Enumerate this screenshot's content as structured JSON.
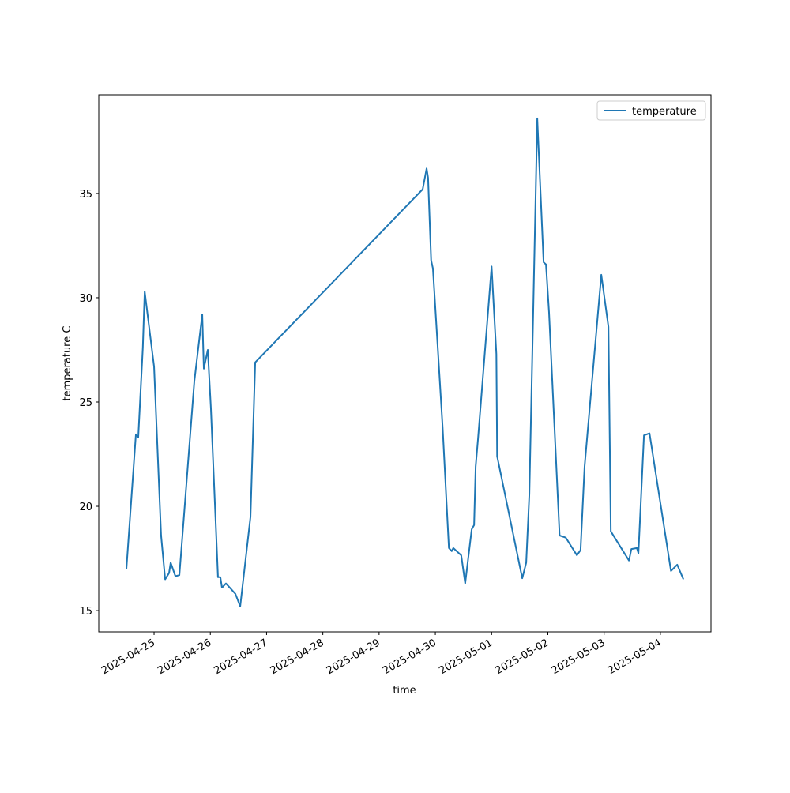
{
  "chart_data": {
    "type": "line",
    "xlabel": "time",
    "ylabel": "temperature C",
    "x": [
      "2025-04-24T12:12",
      "2025-04-24T16:15",
      "2025-04-24T17:15",
      "2025-04-24T19:12",
      "2025-04-24T20:00",
      "2025-04-25T00:00",
      "2025-04-25T03:00",
      "2025-04-25T04:44",
      "2025-04-25T06:24",
      "2025-04-25T07:05",
      "2025-04-25T09:06",
      "2025-04-25T10:48",
      "2025-04-25T17:11",
      "2025-04-25T20:34",
      "2025-04-25T21:14",
      "2025-04-25T22:55",
      "2025-04-26T00:15",
      "2025-04-26T03:16",
      "2025-04-26T04:17",
      "2025-04-26T04:58",
      "2025-04-26T06:40",
      "2025-04-26T10:43",
      "2025-04-26T12:45",
      "2025-04-26T17:08",
      "2025-04-26T19:09",
      "2025-04-29T18:36",
      "2025-04-29T20:17",
      "2025-04-29T20:54",
      "2025-04-29T22:12",
      "2025-04-29T22:58",
      "2025-04-30T03:06",
      "2025-04-30T05:47",
      "2025-04-30T07:00",
      "2025-04-30T07:40",
      "2025-04-30T11:03",
      "2025-04-30T12:44",
      "2025-04-30T15:31",
      "2025-04-30T16:32",
      "2025-04-30T17:12",
      "2025-04-30T18:13",
      "2025-05-01T00:00",
      "2025-05-01T02:02",
      "2025-05-01T02:22",
      "2025-05-01T13:05",
      "2025-05-01T14:46",
      "2025-05-01T16:07",
      "2025-05-01T19:29",
      "2025-05-01T22:11",
      "2025-05-01T23:12",
      "2025-05-02T00:30",
      "2025-05-02T05:01",
      "2025-05-02T07:38",
      "2025-05-02T12:24",
      "2025-05-02T13:57",
      "2025-05-02T15:40",
      "2025-05-02T22:48",
      "2025-05-03T01:51",
      "2025-05-03T02:51",
      "2025-05-03T10:36",
      "2025-05-03T11:38",
      "2025-05-03T13:59",
      "2025-05-03T14:38",
      "2025-05-03T17:00",
      "2025-05-03T19:22",
      "2025-05-04T04:31",
      "2025-05-04T07:12",
      "2025-05-04T09:50"
    ],
    "series": [
      {
        "name": "temperature",
        "color": "#1f77b4",
        "values": [
          17.0,
          23.45,
          23.3,
          27.6,
          30.3,
          26.7,
          18.6,
          16.5,
          16.8,
          17.3,
          16.65,
          16.7,
          26.0,
          29.2,
          26.6,
          27.5,
          24.7,
          16.6,
          16.6,
          16.1,
          16.3,
          15.8,
          15.2,
          19.5,
          26.9,
          35.2,
          36.2,
          35.75,
          31.8,
          31.4,
          23.8,
          18.0,
          17.85,
          18.0,
          17.65,
          16.3,
          18.9,
          19.1,
          21.9,
          23.25,
          31.5,
          27.3,
          22.4,
          16.55,
          17.3,
          20.6,
          38.6,
          31.7,
          31.6,
          29.3,
          18.6,
          18.5,
          17.65,
          17.9,
          21.9,
          31.1,
          28.6,
          18.8,
          17.4,
          17.95,
          18.0,
          17.75,
          23.4,
          23.5,
          16.9,
          17.2,
          16.5
        ]
      }
    ],
    "xlim": [
      "2025-04-24T00:24",
      "2025-05-04T21:36"
    ],
    "xticks": [
      "2025-04-25",
      "2025-04-26",
      "2025-04-27",
      "2025-04-28",
      "2025-04-29",
      "2025-04-30",
      "2025-05-01",
      "2025-05-02",
      "2025-05-03",
      "2025-05-04"
    ],
    "ylim": [
      13.98,
      39.73
    ],
    "yticks": [
      15,
      20,
      25,
      30,
      35
    ],
    "legend": "upper right"
  }
}
